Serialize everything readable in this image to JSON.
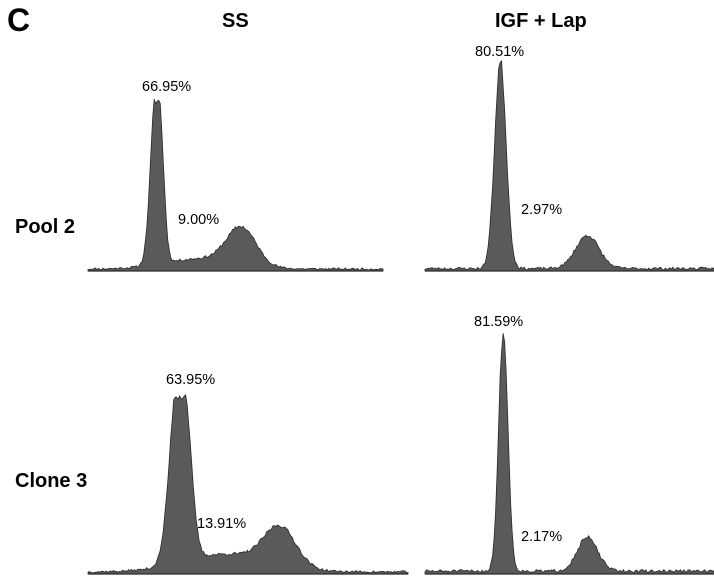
{
  "figure": {
    "panel_letter": "C",
    "column_headers": [
      "SS",
      "IGF + Lap"
    ],
    "row_labels": [
      "Pool 2",
      "Clone 3"
    ],
    "fill_color": "#5a5a5a",
    "baseline_color": "#2a2a2a"
  },
  "chart_data": [
    {
      "type": "area",
      "row": "Pool 2",
      "column": "SS",
      "labels": {
        "g1_percent": "66.95%",
        "g2m_percent": "9.00%"
      },
      "peaks": [
        {
          "center": 0.23,
          "width": 0.018,
          "height": 1.0
        },
        {
          "center": 0.25,
          "width": 0.012,
          "height": 0.25
        },
        {
          "center": 0.52,
          "width": 0.05,
          "height": 0.22
        },
        {
          "center": 0.38,
          "width": 0.12,
          "height": 0.06
        }
      ],
      "seed": 11
    },
    {
      "type": "area",
      "row": "Pool 2",
      "column": "IGF + Lap",
      "labels": {
        "g1_percent": "80.51%",
        "g2m_percent": "2.97%"
      },
      "peaks": [
        {
          "center": 0.26,
          "width": 0.02,
          "height": 1.0
        },
        {
          "center": 0.56,
          "width": 0.04,
          "height": 0.16
        }
      ],
      "seed": 23
    },
    {
      "type": "area",
      "row": "Clone 3",
      "column": "SS",
      "labels": {
        "g1_percent": "63.95%",
        "g2m_percent": "13.91%"
      },
      "peaks": [
        {
          "center": 0.28,
          "width": 0.025,
          "height": 1.0
        },
        {
          "center": 0.31,
          "width": 0.02,
          "height": 0.4
        },
        {
          "center": 0.6,
          "width": 0.05,
          "height": 0.22
        },
        {
          "center": 0.43,
          "width": 0.13,
          "height": 0.1
        }
      ],
      "seed": 37
    },
    {
      "type": "area",
      "row": "Clone 3",
      "column": "IGF + Lap",
      "labels": {
        "g1_percent": "81.59%",
        "g2m_percent": "2.17%"
      },
      "peaks": [
        {
          "center": 0.27,
          "width": 0.016,
          "height": 1.0
        },
        {
          "center": 0.56,
          "width": 0.035,
          "height": 0.14
        }
      ],
      "seed": 51
    }
  ]
}
